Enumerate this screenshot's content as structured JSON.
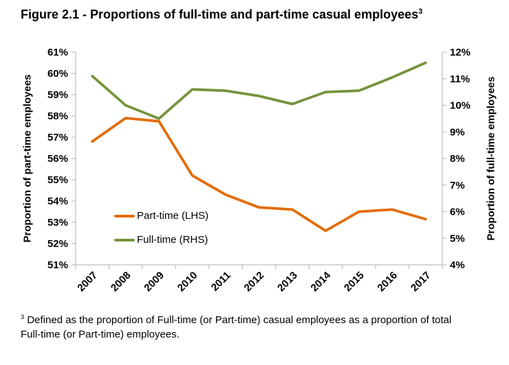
{
  "title": {
    "text": "Figure 2.1 - Proportions of full-time and part-time casual employees",
    "superscript": "3"
  },
  "chart_data": {
    "type": "line",
    "categories": [
      "2007",
      "2008",
      "2009",
      "2010",
      "2011",
      "2012",
      "2013",
      "2014",
      "2015",
      "2016",
      "2017"
    ],
    "series": [
      {
        "name": "Part-time (LHS)",
        "axis": "left",
        "color": "#E36C0A",
        "values": [
          56.8,
          57.9,
          57.75,
          55.2,
          54.3,
          53.7,
          53.6,
          52.6,
          53.5,
          53.6,
          53.15
        ]
      },
      {
        "name": "Full-time (RHS)",
        "axis": "right",
        "color": "#76933C",
        "values": [
          11.1,
          10.0,
          9.5,
          10.6,
          10.55,
          10.35,
          10.05,
          10.5,
          10.55,
          11.05,
          11.6
        ]
      }
    ],
    "left_axis": {
      "title": "Proportion of part-time employees",
      "min": 51,
      "max": 61,
      "step": 1,
      "tick_labels": [
        "51%",
        "52%",
        "53%",
        "54%",
        "55%",
        "56%",
        "57%",
        "58%",
        "59%",
        "60%",
        "61%"
      ]
    },
    "right_axis": {
      "title": "Proportion of full-time employees",
      "min": 4,
      "max": 12,
      "step": 1,
      "tick_labels": [
        "4%",
        "5%",
        "6%",
        "7%",
        "8%",
        "9%",
        "10%",
        "11%",
        "12%"
      ]
    },
    "legend": {
      "position": "inside-bottom-left"
    },
    "grid": false,
    "axis_color": "#BFBFBF"
  },
  "footnote": {
    "marker": "3",
    "lines": [
      "Defined as the proportion of Full-time (or Part-time) casual employees as a proportion of total",
      "Full-time (or Part-time) employees."
    ]
  }
}
